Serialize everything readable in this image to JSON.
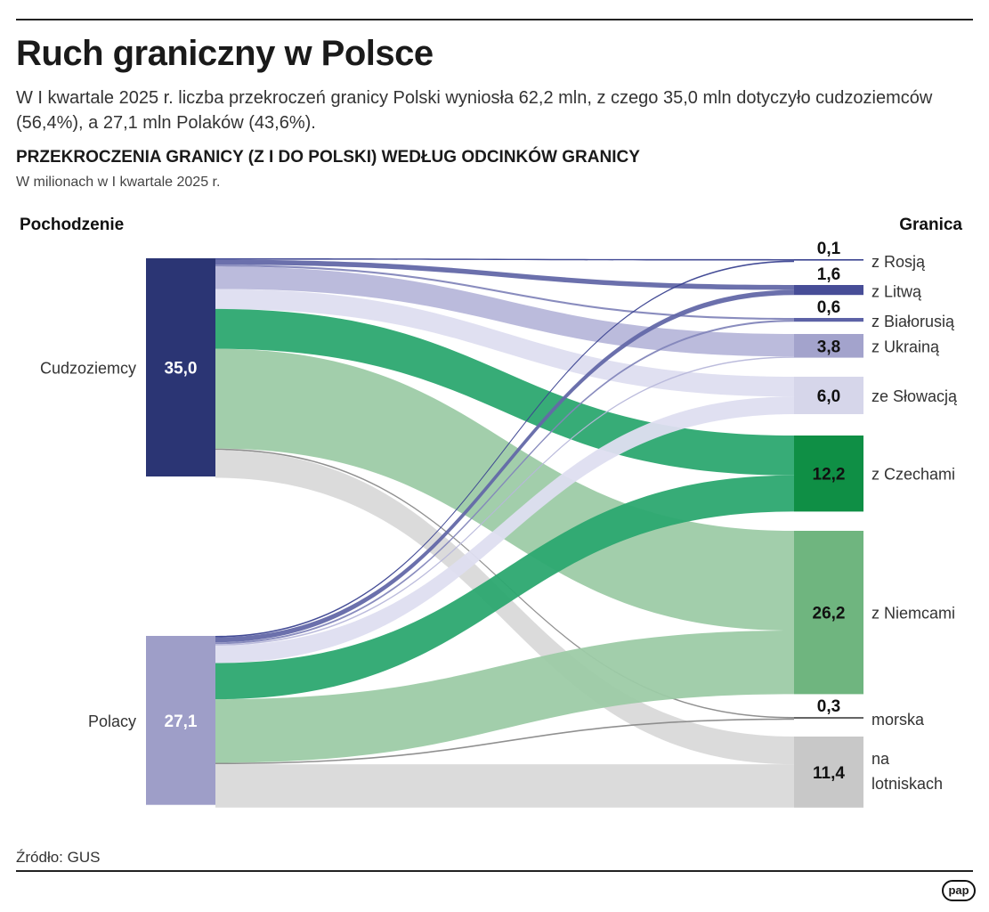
{
  "title": "Ruch graniczny w Polsce",
  "subtitle": "W I kwartale 2025 r. liczba przekroczeń granicy Polski wyniosła 62,2 mln, z czego 35,0 mln dotyczyło cudzoziemców (56,4%), a 27,1 mln Polaków (43,6%).",
  "chart_title": "PRZEKROCZENIA GRANICY (Z I DO POLSKI) WEDŁUG ODCINKÓW GRANICY",
  "chart_subtitle": "W milionach w I kwartale 2025 r.",
  "source": "Źródło: GUS",
  "logo": "pap",
  "chart_data": {
    "type": "sankey",
    "left_header": "Pochodzenie",
    "right_header": "Granica",
    "sources": [
      {
        "name": "Cudzoziemcy",
        "value": 35.0,
        "label": "35,0",
        "color": "#2b3574"
      },
      {
        "name": "Polacy",
        "value": 27.1,
        "label": "27,1",
        "color": "#9e9ec8"
      }
    ],
    "targets": [
      {
        "name": "z Rosją",
        "value": 0.1,
        "label": "0,1",
        "color": "#3a4290",
        "flow_color": "#3a4290"
      },
      {
        "name": "z Litwą",
        "value": 1.6,
        "label": "1,6",
        "color": "#474d97",
        "flow_color": "#6368a8"
      },
      {
        "name": "z Białorusią",
        "value": 0.6,
        "label": "0,6",
        "color": "#5d62a6",
        "flow_color": "#8386bb"
      },
      {
        "name": "z Ukrainą",
        "value": 3.8,
        "label": "3,8",
        "color": "#a3a3cc",
        "flow_color": "#b7b7da"
      },
      {
        "name": "ze Słowacją",
        "value": 6.0,
        "label": "6,0",
        "color": "#d6d6ea",
        "flow_color": "#dedef0"
      },
      {
        "name": "z Czechami",
        "value": 12.2,
        "label": "12,2",
        "color": "#0f8f45",
        "flow_color": "#2ca870"
      },
      {
        "name": "z Niemcami",
        "value": 26.2,
        "label": "26,2",
        "color": "#6fb57f",
        "flow_color": "#9dcba6"
      },
      {
        "name": "morska",
        "value": 0.3,
        "label": "0,3",
        "color": "#666666",
        "flow_color": "#8a8a8a"
      },
      {
        "name": "na lotniskach",
        "value": 11.4,
        "label": "11,4",
        "color": "#c8c8c8",
        "flow_color": "#d9d9d9"
      }
    ],
    "flows": {
      "Cudzoziemcy": [
        0.05,
        0.8,
        0.3,
        3.6,
        3.2,
        6.4,
        16.0,
        0.2,
        4.45
      ],
      "Polacy": [
        0.05,
        0.8,
        0.3,
        0.2,
        2.8,
        5.8,
        10.2,
        0.1,
        6.95
      ]
    }
  }
}
